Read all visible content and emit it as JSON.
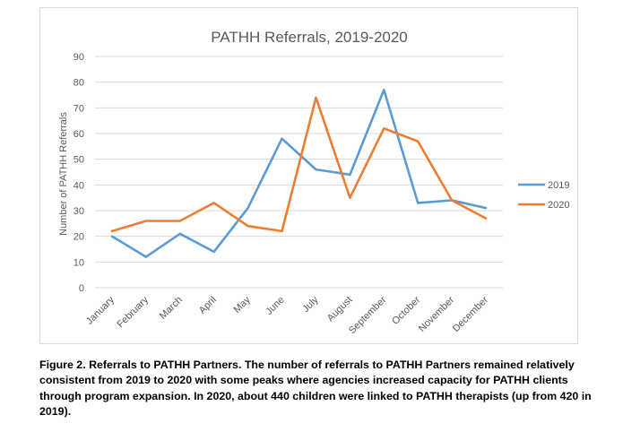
{
  "chart_data": {
    "type": "line",
    "title": "PATHH Referrals, 2019-2020",
    "xlabel": "",
    "ylabel": "Number of PATHH Referrals",
    "categories": [
      "January",
      "February",
      "March",
      "April",
      "May",
      "June",
      "July",
      "August",
      "September",
      "October",
      "November",
      "December"
    ],
    "series": [
      {
        "name": "2019",
        "color": "#5b9bd5",
        "values": [
          20,
          12,
          21,
          14,
          31,
          58,
          46,
          44,
          77,
          33,
          34,
          31
        ]
      },
      {
        "name": "2020",
        "color": "#ed7d31",
        "values": [
          22,
          26,
          26,
          33,
          24,
          22,
          74,
          35,
          62,
          57,
          34,
          27
        ]
      }
    ],
    "ylim": [
      0,
      90
    ],
    "yticks": [
      0,
      10,
      20,
      30,
      40,
      50,
      60,
      70,
      80,
      90
    ],
    "grid": true,
    "legend": "right"
  },
  "caption": "Figure 2. Referrals to PATHH Partners. The number of referrals to PATHH Partners remained relatively consistent from 2019 to 2020 with some peaks where agencies increased capacity for PATHH clients through program expansion. In 2020, about 440 children were linked to PATHH therapists (up from 420 in 2019)."
}
